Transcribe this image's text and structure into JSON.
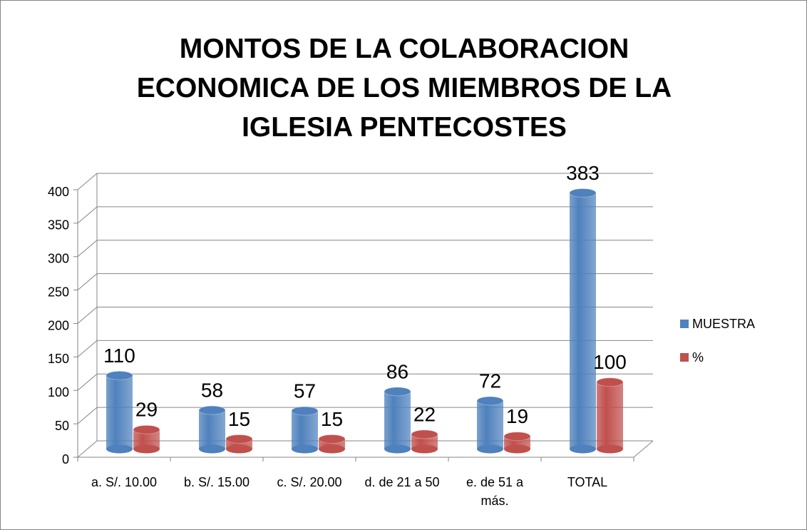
{
  "chart_data": {
    "type": "bar3d",
    "title": "MONTOS DE LA COLABORACION ECONOMICA DE LOS MIEMBROS DE LA IGLESIA PENTECOSTES",
    "categories": [
      "a. S/. 10.00",
      "b. S/. 15.00",
      "c. S/. 20.00",
      "d. de 21 a 50",
      "e. de 51 a más.",
      "TOTAL"
    ],
    "series": [
      {
        "name": "MUESTRA",
        "color": "#4f81bd",
        "values": [
          110,
          58,
          57,
          86,
          72,
          383
        ]
      },
      {
        "name": "%",
        "color": "#c0504d",
        "values": [
          29,
          15,
          15,
          22,
          19,
          100
        ]
      }
    ],
    "ylim": [
      0,
      400
    ],
    "yticks": [
      0,
      50,
      100,
      150,
      200,
      250,
      300,
      350,
      400
    ],
    "grid": true,
    "legend": "right"
  }
}
